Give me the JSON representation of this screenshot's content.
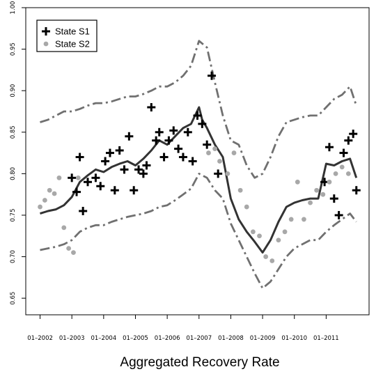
{
  "chart_data": {
    "type": "line",
    "title": "",
    "xlabel": "Aggregated Recovery Rate",
    "ylabel": "",
    "xlim": [
      2001.55,
      2012.35
    ],
    "ylim": [
      0.63,
      1.0
    ],
    "grid": false,
    "legend_position": "top-left",
    "x_ticks": [
      2002,
      2003,
      2004,
      2005,
      2006,
      2007,
      2008,
      2009,
      2010,
      2011
    ],
    "x_tick_labels": [
      "01–2002",
      "01–2003",
      "01–2004",
      "01–2005",
      "01–2006",
      "01–2007",
      "01–2008",
      "01–2009",
      "01–2010",
      "01–2011"
    ],
    "y_ticks": [
      0.65,
      0.7,
      0.75,
      0.8,
      0.85,
      0.9,
      0.95,
      1.0
    ],
    "y_tick_labels": [
      "0.65",
      "0.70",
      "0.75",
      "0.80",
      "0.85",
      "0.90",
      "0.95",
      "1.00"
    ],
    "colors": {
      "mean": "#333333",
      "band": "#707070",
      "s1": "#000000",
      "s2": "#a8a8a8"
    },
    "legend": [
      {
        "label": "State S1",
        "marker": "plus"
      },
      {
        "label": "State S2",
        "marker": "circle"
      }
    ],
    "series": [
      {
        "style": "solid",
        "x": [
          2002.0,
          2002.25,
          2002.5,
          2002.75,
          2003.0,
          2003.25,
          2003.5,
          2003.75,
          2004.0,
          2004.25,
          2004.5,
          2004.75,
          2005.0,
          2005.25,
          2005.5,
          2005.75,
          2006.0,
          2006.25,
          2006.5,
          2006.75,
          2007.0,
          2007.1,
          2007.25,
          2007.5,
          2007.75,
          2008.0,
          2008.25,
          2008.5,
          2008.75,
          2009.0,
          2009.25,
          2009.5,
          2009.75,
          2010.0,
          2010.25,
          2010.5,
          2010.75,
          2011.0,
          2011.25,
          2011.5,
          2011.75,
          2011.95
        ],
        "y": [
          0.752,
          0.755,
          0.757,
          0.762,
          0.772,
          0.79,
          0.798,
          0.805,
          0.802,
          0.808,
          0.812,
          0.815,
          0.81,
          0.818,
          0.828,
          0.84,
          0.835,
          0.845,
          0.855,
          0.86,
          0.88,
          0.865,
          0.855,
          0.835,
          0.82,
          0.77,
          0.745,
          0.73,
          0.718,
          0.705,
          0.72,
          0.742,
          0.76,
          0.765,
          0.768,
          0.77,
          0.77,
          0.812,
          0.81,
          0.815,
          0.818,
          0.795
        ]
      },
      {
        "style": "dashdot-upper",
        "x": [
          2002.0,
          2002.25,
          2002.5,
          2002.75,
          2003.0,
          2003.25,
          2003.5,
          2003.75,
          2004.0,
          2004.25,
          2004.5,
          2004.75,
          2005.0,
          2005.25,
          2005.5,
          2005.75,
          2006.0,
          2006.25,
          2006.5,
          2006.75,
          2007.0,
          2007.25,
          2007.5,
          2007.75,
          2008.0,
          2008.25,
          2008.5,
          2008.75,
          2009.0,
          2009.25,
          2009.5,
          2009.75,
          2010.0,
          2010.25,
          2010.5,
          2010.75,
          2011.0,
          2011.25,
          2011.5,
          2011.75,
          2011.95
        ],
        "y": [
          0.862,
          0.865,
          0.87,
          0.875,
          0.875,
          0.878,
          0.882,
          0.885,
          0.885,
          0.887,
          0.89,
          0.893,
          0.893,
          0.896,
          0.9,
          0.905,
          0.905,
          0.91,
          0.918,
          0.93,
          0.96,
          0.952,
          0.91,
          0.87,
          0.84,
          0.835,
          0.81,
          0.795,
          0.8,
          0.82,
          0.845,
          0.862,
          0.865,
          0.868,
          0.87,
          0.87,
          0.88,
          0.89,
          0.895,
          0.905,
          0.882
        ]
      },
      {
        "style": "dashdot-lower",
        "x": [
          2002.0,
          2002.25,
          2002.5,
          2002.75,
          2003.0,
          2003.25,
          2003.5,
          2003.75,
          2004.0,
          2004.25,
          2004.5,
          2004.75,
          2005.0,
          2005.25,
          2005.5,
          2005.75,
          2006.0,
          2006.25,
          2006.5,
          2006.75,
          2007.0,
          2007.25,
          2007.5,
          2007.75,
          2008.0,
          2008.25,
          2008.5,
          2008.75,
          2009.0,
          2009.25,
          2009.5,
          2009.75,
          2010.0,
          2010.25,
          2010.5,
          2010.75,
          2011.0,
          2011.25,
          2011.5,
          2011.75,
          2011.95
        ],
        "y": [
          0.708,
          0.71,
          0.712,
          0.715,
          0.72,
          0.73,
          0.735,
          0.738,
          0.738,
          0.742,
          0.745,
          0.748,
          0.75,
          0.752,
          0.755,
          0.76,
          0.762,
          0.768,
          0.775,
          0.782,
          0.8,
          0.795,
          0.78,
          0.77,
          0.74,
          0.72,
          0.7,
          0.68,
          0.662,
          0.67,
          0.685,
          0.7,
          0.71,
          0.715,
          0.72,
          0.72,
          0.73,
          0.738,
          0.745,
          0.752,
          0.742
        ]
      },
      {
        "name": "State S1",
        "style": "plus",
        "x": [
          2003.0,
          2003.15,
          2003.25,
          2003.35,
          2003.5,
          2003.75,
          2003.9,
          2004.05,
          2004.2,
          2004.35,
          2004.5,
          2004.65,
          2004.8,
          2004.95,
          2005.1,
          2005.25,
          2005.35,
          2005.5,
          2005.65,
          2005.75,
          2005.9,
          2006.05,
          2006.2,
          2006.35,
          2006.5,
          2006.65,
          2006.8,
          2006.95,
          2007.1,
          2007.25,
          2007.4,
          2007.6,
          2010.95,
          2011.1,
          2011.25,
          2011.4,
          2011.55,
          2011.7,
          2011.85,
          2011.95
        ],
        "y": [
          0.795,
          0.778,
          0.82,
          0.755,
          0.79,
          0.795,
          0.785,
          0.815,
          0.825,
          0.78,
          0.828,
          0.805,
          0.845,
          0.78,
          0.805,
          0.8,
          0.81,
          0.88,
          0.84,
          0.85,
          0.82,
          0.84,
          0.852,
          0.83,
          0.82,
          0.85,
          0.815,
          0.87,
          0.86,
          0.835,
          0.918,
          0.8,
          0.79,
          0.832,
          0.77,
          0.75,
          0.825,
          0.84,
          0.848,
          0.78
        ]
      },
      {
        "name": "State S2",
        "style": "circle",
        "x": [
          2002.0,
          2002.15,
          2002.3,
          2002.45,
          2002.6,
          2002.75,
          2002.9,
          2003.05,
          2003.2,
          2007.3,
          2007.5,
          2007.65,
          2007.9,
          2008.1,
          2008.3,
          2008.5,
          2008.7,
          2008.9,
          2009.1,
          2009.3,
          2009.5,
          2009.7,
          2009.9,
          2010.1,
          2010.3,
          2010.5,
          2010.7,
          2010.9,
          2011.1,
          2011.3,
          2011.5,
          2011.7
        ],
        "y": [
          0.76,
          0.768,
          0.78,
          0.776,
          0.795,
          0.735,
          0.71,
          0.705,
          0.795,
          0.825,
          0.83,
          0.815,
          0.8,
          0.825,
          0.78,
          0.76,
          0.73,
          0.725,
          0.7,
          0.695,
          0.72,
          0.73,
          0.745,
          0.79,
          0.745,
          0.765,
          0.78,
          0.775,
          0.79,
          0.8,
          0.808,
          0.8
        ]
      }
    ]
  }
}
